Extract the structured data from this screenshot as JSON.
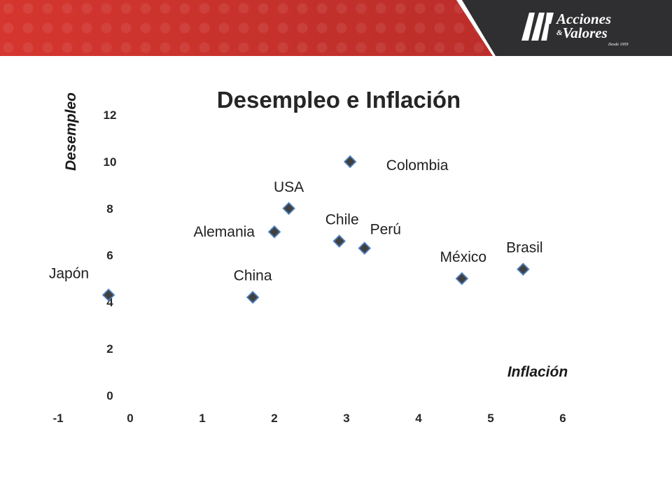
{
  "header": {
    "logo_line1": "Acciones",
    "logo_amp": "&",
    "logo_line2": "Valores",
    "logo_tagline": "Desde 1959",
    "colors": {
      "banner_red": "#c2302b",
      "banner_dark": "#2f2f31"
    }
  },
  "chart_data": {
    "type": "scatter",
    "title": "Desempleo e Inflación",
    "xlabel": "Inflación",
    "ylabel": "Desempleo",
    "xlim": [
      -1,
      6
    ],
    "ylim": [
      0,
      12
    ],
    "x_ticks": [
      -1,
      0,
      1,
      2,
      3,
      4,
      5,
      6
    ],
    "y_ticks": [
      0,
      2,
      4,
      6,
      8,
      10,
      12
    ],
    "grid": false,
    "legend": "none",
    "marker": "diamond",
    "marker_color": "#404040",
    "marker_edge_color": "#4f81bd",
    "points": [
      {
        "label": "Japón",
        "x": -0.3,
        "y": 4.3
      },
      {
        "label": "China",
        "x": 1.7,
        "y": 4.2
      },
      {
        "label": "Alemania",
        "x": 2.0,
        "y": 7.0
      },
      {
        "label": "USA",
        "x": 2.2,
        "y": 8.0
      },
      {
        "label": "Chile",
        "x": 2.9,
        "y": 6.6
      },
      {
        "label": "Perú",
        "x": 3.25,
        "y": 6.3
      },
      {
        "label": "Colombia",
        "x": 3.05,
        "y": 10.0
      },
      {
        "label": "México",
        "x": 4.6,
        "y": 5.0
      },
      {
        "label": "Brasil",
        "x": 5.45,
        "y": 5.4
      }
    ]
  }
}
